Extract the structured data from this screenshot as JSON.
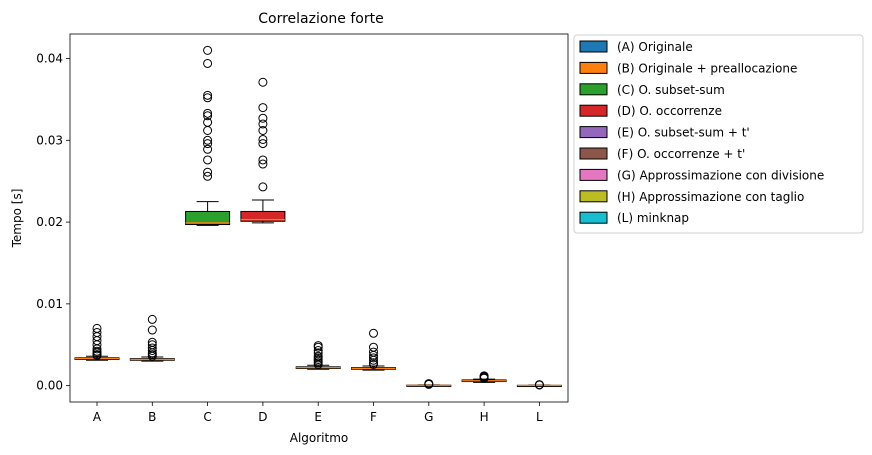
{
  "chart_data": {
    "type": "box",
    "title": "Correlazione forte",
    "xlabel": "Algoritmo",
    "ylabel": "Tempo [s]",
    "ylim": [
      -0.002,
      0.043
    ],
    "yticks": [
      0.0,
      0.01,
      0.02,
      0.03,
      0.04
    ],
    "ytick_labels": [
      "0.00",
      "0.01",
      "0.02",
      "0.03",
      "0.04"
    ],
    "legend_position": "outside-right",
    "median_color": "#ff7f0e",
    "series": [
      {
        "category": "A",
        "legend": "(A) Originale",
        "color": "#1f77b4",
        "whislo": 0.0031,
        "q1": 0.0032,
        "median": 0.0033,
        "q3": 0.0034,
        "whishi": 0.0036,
        "fliers": [
          0.0037,
          0.0038,
          0.004,
          0.0042,
          0.0045,
          0.005,
          0.0055,
          0.006,
          0.0065,
          0.007
        ]
      },
      {
        "category": "B",
        "legend": "(B) Originale + preallocazione",
        "color": "#ff7f0e",
        "whislo": 0.003,
        "q1": 0.0031,
        "median": 0.0032,
        "q3": 0.0033,
        "whishi": 0.0035,
        "fliers": [
          0.0036,
          0.0038,
          0.004,
          0.0043,
          0.0046,
          0.005,
          0.0053,
          0.0068,
          0.0081
        ]
      },
      {
        "category": "C",
        "legend": "(C) O. subset-sum",
        "color": "#2ca02c",
        "whislo": 0.0196,
        "q1": 0.0197,
        "median": 0.0199,
        "q3": 0.0213,
        "whishi": 0.0225,
        "fliers": [
          0.0256,
          0.0261,
          0.0276,
          0.0289,
          0.0296,
          0.03,
          0.0312,
          0.0322,
          0.033,
          0.0333,
          0.0352,
          0.0355,
          0.0394,
          0.041
        ]
      },
      {
        "category": "D",
        "legend": "(D) O. occorrenze",
        "color": "#d62728",
        "whislo": 0.0199,
        "q1": 0.0201,
        "median": 0.0203,
        "q3": 0.0213,
        "whishi": 0.0227,
        "fliers": [
          0.0243,
          0.0271,
          0.0276,
          0.0296,
          0.0301,
          0.0312,
          0.032,
          0.0327,
          0.034,
          0.0371
        ]
      },
      {
        "category": "E",
        "legend": "(E) O. subset-sum + t'",
        "color": "#9467bd",
        "whislo": 0.002,
        "q1": 0.0021,
        "median": 0.0022,
        "q3": 0.0023,
        "whishi": 0.0025,
        "fliers": [
          0.0026,
          0.0028,
          0.003,
          0.0032,
          0.0034,
          0.0036,
          0.004,
          0.0043,
          0.0047,
          0.0049
        ]
      },
      {
        "category": "F",
        "legend": "(F) O. occorrenze + t'",
        "color": "#8c564b",
        "whislo": 0.0019,
        "q1": 0.002,
        "median": 0.0021,
        "q3": 0.0022,
        "whishi": 0.0024,
        "fliers": [
          0.0026,
          0.0028,
          0.0031,
          0.0034,
          0.0037,
          0.0041,
          0.0047,
          0.0064
        ]
      },
      {
        "category": "G",
        "legend": "(G) Approssimazione con divisione",
        "color": "#e377c2",
        "whislo": 0.0,
        "q1": 2e-05,
        "median": 4e-05,
        "q3": 6e-05,
        "whishi": 0.0001,
        "fliers": [
          0.00015,
          0.0002,
          0.00025
        ]
      },
      {
        "category": "H",
        "legend": "(H) Approssimazione con taglio",
        "color": "#bcbd22",
        "whislo": 0.0004,
        "q1": 0.0005,
        "median": 0.0006,
        "q3": 0.0007,
        "whishi": 0.0008,
        "fliers": [
          0.0009,
          0.001,
          0.0011,
          0.0012
        ]
      },
      {
        "category": "L",
        "legend": "(L) minknap",
        "color": "#17becf",
        "whislo": 0.0,
        "q1": 1e-05,
        "median": 2e-05,
        "q3": 4e-05,
        "whishi": 6e-05,
        "fliers": [
          8e-05,
          0.0001,
          0.00012
        ]
      }
    ]
  }
}
